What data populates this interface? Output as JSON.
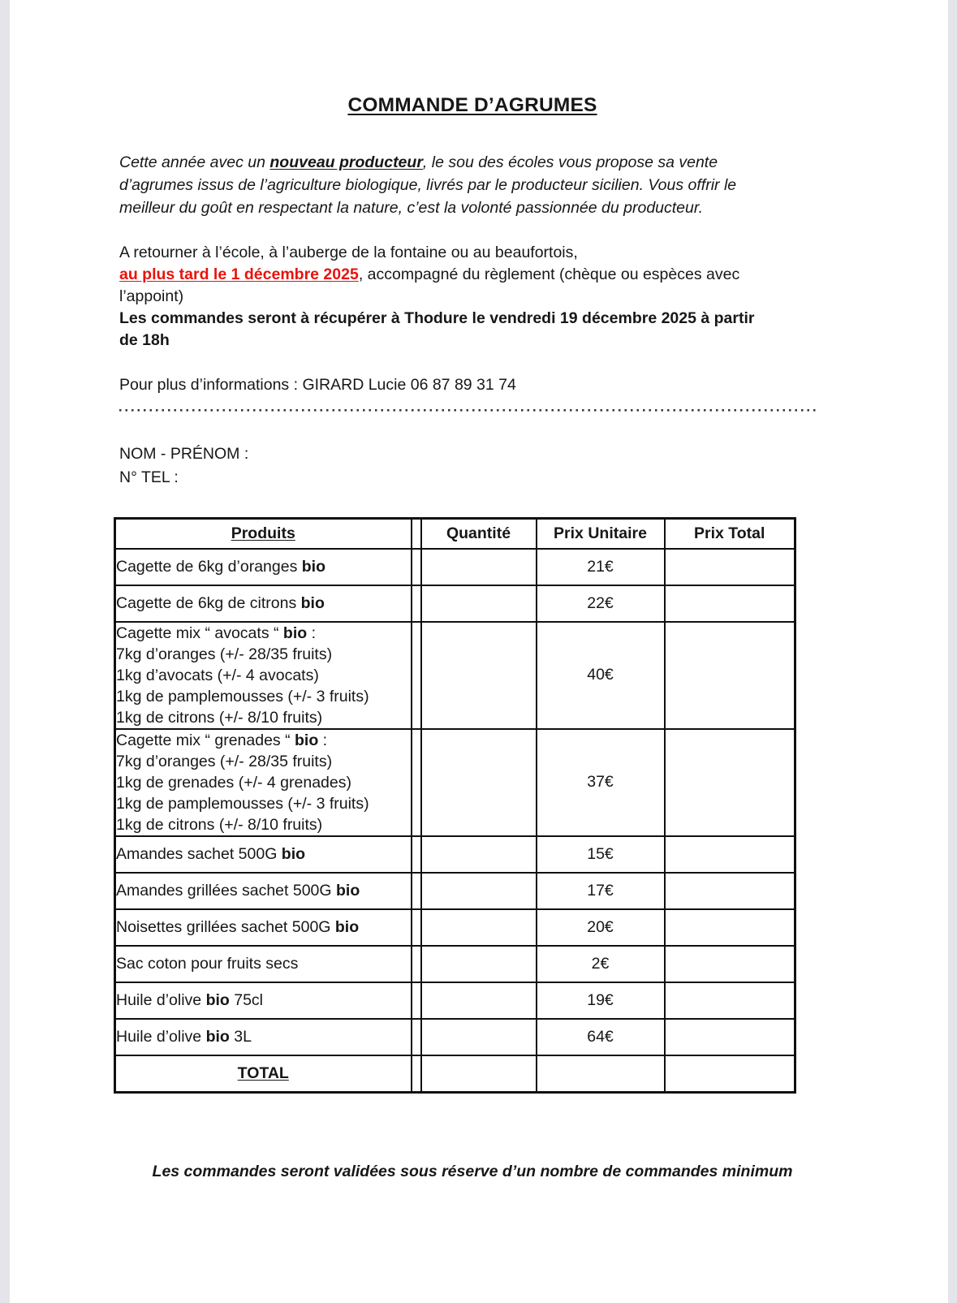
{
  "page": {
    "title": "COMMANDE D’AGRUMES",
    "intro_lines": [
      {
        "i": true,
        "segs": [
          {
            "t": "Cette année avec un "
          },
          {
            "t": "nouveau producteur",
            "b": true,
            "u": true
          },
          {
            "t": ", le sou des écoles vous propose sa vente"
          }
        ]
      },
      {
        "i": true,
        "segs": [
          {
            "t": "d’agrumes issus de l’agriculture biologique, livrés par le producteur sicilien. Vous offrir le"
          }
        ]
      },
      {
        "i": true,
        "segs": [
          {
            "t": "meilleur du goût en respectant la nature, c’est la volonté passionnée du producteur."
          }
        ]
      }
    ],
    "return_lines": [
      {
        "segs": [
          {
            "t": "A retourner à l’école, à l’auberge de la fontaine ou au beaufortois,"
          }
        ]
      },
      {
        "segs": [
          {
            "t": "au plus tard le 1 décembre 2025",
            "b": true,
            "u": true,
            "red": true
          },
          {
            "t": ", accompagné du règlement (chèque ou espèces avec"
          }
        ]
      },
      {
        "segs": [
          {
            "t": "l’appoint)"
          }
        ]
      },
      {
        "segs": [
          {
            "t": "Les commandes seront à récupérer à Thodure le vendredi 19 décembre 2025 à partir",
            "b": true
          }
        ]
      },
      {
        "segs": [
          {
            "t": "de 18h",
            "b": true
          }
        ]
      }
    ],
    "contact": "Pour plus d’informations : GIRARD Lucie 06 87 89 31 74",
    "form_fields": {
      "name_label": "NOM - PRÉNOM :",
      "phone_label": "N° TEL :"
    },
    "footer": "Les commandes seront validées sous réserve d’un nombre de commandes minimum",
    "colors": {
      "deadline_red": "#e8130b",
      "page_background": "#ffffff",
      "viewer_edge": "#e4e4ea",
      "table_border": "#101010"
    }
  },
  "table": {
    "headers": {
      "products": "Produits",
      "quantity": "Quantité",
      "unit_price": "Prix Unitaire",
      "total_price": "Prix Total"
    },
    "rows": [
      {
        "unit_price": "21€",
        "quantity": "",
        "total": "",
        "lines": [
          [
            {
              "t": "Cagette de 6kg d’oranges "
            },
            {
              "t": "bio",
              "b": true
            }
          ]
        ]
      },
      {
        "unit_price": "22€",
        "quantity": "",
        "total": "",
        "lines": [
          [
            {
              "t": "Cagette de 6kg de citrons "
            },
            {
              "t": "bio",
              "b": true
            }
          ]
        ]
      },
      {
        "unit_price": "40€",
        "quantity": "",
        "total": "",
        "lines": [
          [
            {
              "t": "Cagette mix “ avocats “ "
            },
            {
              "t": "bio",
              "b": true
            },
            {
              "t": " :"
            }
          ],
          [
            {
              "t": "7kg d’oranges (+/- 28/35 fruits)"
            }
          ],
          [
            {
              "t": "1kg d’avocats (+/- 4 avocats)"
            }
          ],
          [
            {
              "t": "1kg de pamplemousses (+/- 3 fruits)"
            }
          ],
          [
            {
              "t": "1kg de citrons (+/- 8/10 fruits)"
            }
          ]
        ]
      },
      {
        "unit_price": "37€",
        "quantity": "",
        "total": "",
        "lines": [
          [
            {
              "t": "Cagette mix “ grenades “ "
            },
            {
              "t": "bio",
              "b": true
            },
            {
              "t": " :"
            }
          ],
          [
            {
              "t": "7kg d’oranges (+/- 28/35 fruits)"
            }
          ],
          [
            {
              "t": "1kg de grenades (+/- 4 grenades)"
            }
          ],
          [
            {
              "t": "1kg de pamplemousses (+/- 3 fruits)"
            }
          ],
          [
            {
              "t": "1kg de citrons (+/- 8/10 fruits)"
            }
          ]
        ]
      },
      {
        "unit_price": "15€",
        "quantity": "",
        "total": "",
        "lines": [
          [
            {
              "t": "Amandes sachet 500G "
            },
            {
              "t": "bio",
              "b": true
            }
          ]
        ]
      },
      {
        "unit_price": "17€",
        "quantity": "",
        "total": "",
        "lines": [
          [
            {
              "t": "Amandes grillées sachet 500G "
            },
            {
              "t": "bio",
              "b": true
            }
          ]
        ]
      },
      {
        "unit_price": "20€",
        "quantity": "",
        "total": "",
        "lines": [
          [
            {
              "t": "Noisettes grillées sachet 500G "
            },
            {
              "t": "bio",
              "b": true
            }
          ]
        ]
      },
      {
        "unit_price": "2€",
        "quantity": "",
        "total": "",
        "lines": [
          [
            {
              "t": "Sac coton pour fruits secs"
            }
          ]
        ]
      },
      {
        "unit_price": "19€",
        "quantity": "",
        "total": "",
        "lines": [
          [
            {
              "t": "Huile d’olive "
            },
            {
              "t": "bio",
              "b": true
            },
            {
              "t": " 75cl"
            }
          ]
        ]
      },
      {
        "unit_price": "64€",
        "quantity": "",
        "total": "",
        "lines": [
          [
            {
              "t": "Huile d’olive "
            },
            {
              "t": "bio",
              "b": true
            },
            {
              "t": " 3L"
            }
          ]
        ]
      }
    ],
    "total_label": "TOTAL"
  }
}
